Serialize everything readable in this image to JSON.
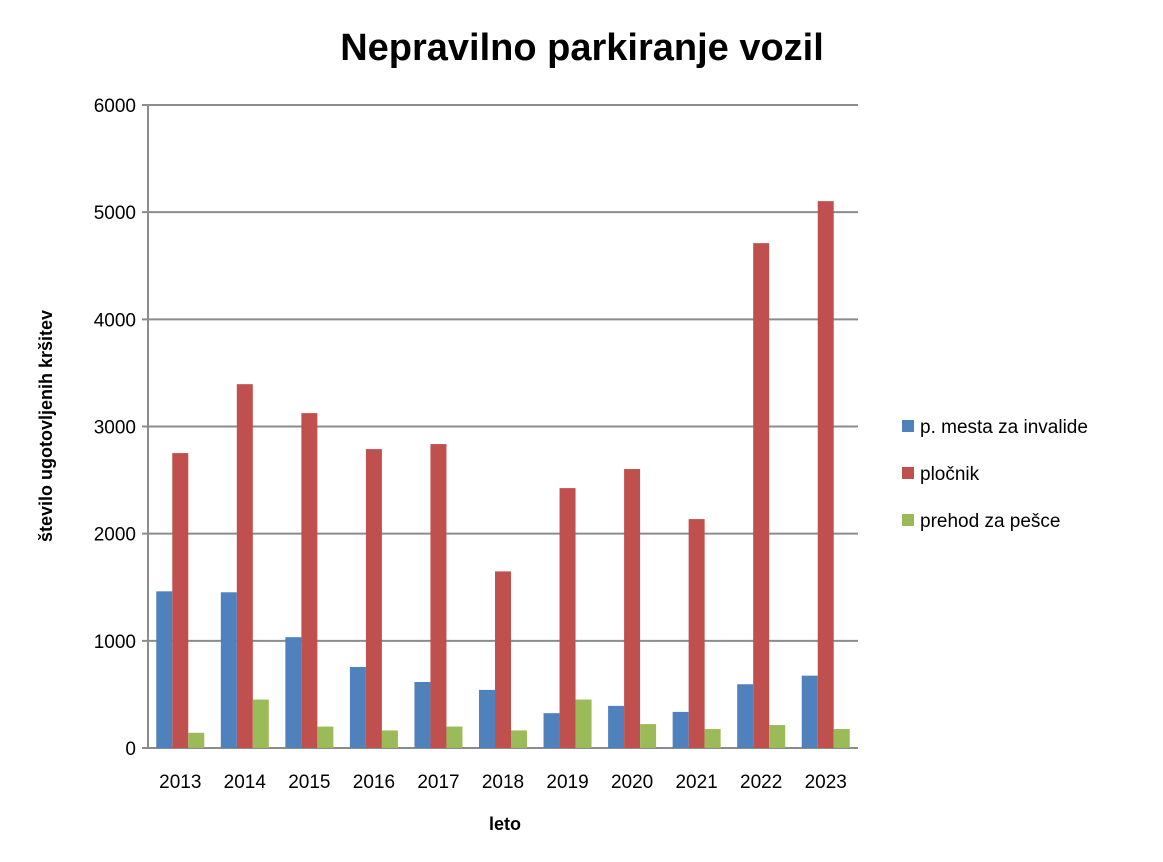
{
  "chart_data": {
    "type": "bar",
    "title": "Nepravilno parkiranje vozil",
    "xlabel": "leto",
    "ylabel": "število ugotovljenih kršitev",
    "ylim": [
      0,
      6000
    ],
    "yticks": [
      0,
      1000,
      2000,
      3000,
      4000,
      5000,
      6000
    ],
    "grid": true,
    "legend_position": "right",
    "categories": [
      "2013",
      "2014",
      "2015",
      "2016",
      "2017",
      "2018",
      "2019",
      "2020",
      "2021",
      "2022",
      "2023"
    ],
    "series": [
      {
        "name": "p. mesta za invalide",
        "color": "#4f81bd",
        "values": [
          1462,
          1453,
          1034,
          756,
          616,
          542,
          325,
          393,
          337,
          595,
          675
        ]
      },
      {
        "name": "pločnik",
        "color": "#c0504d",
        "values": [
          2752,
          3395,
          3125,
          2789,
          2836,
          1648,
          2425,
          2603,
          2136,
          4711,
          5103
        ]
      },
      {
        "name": "prehod za pešce",
        "color": "#9bbb59",
        "values": [
          142,
          452,
          200,
          164,
          200,
          164,
          452,
          223,
          177,
          214,
          177
        ]
      }
    ]
  }
}
